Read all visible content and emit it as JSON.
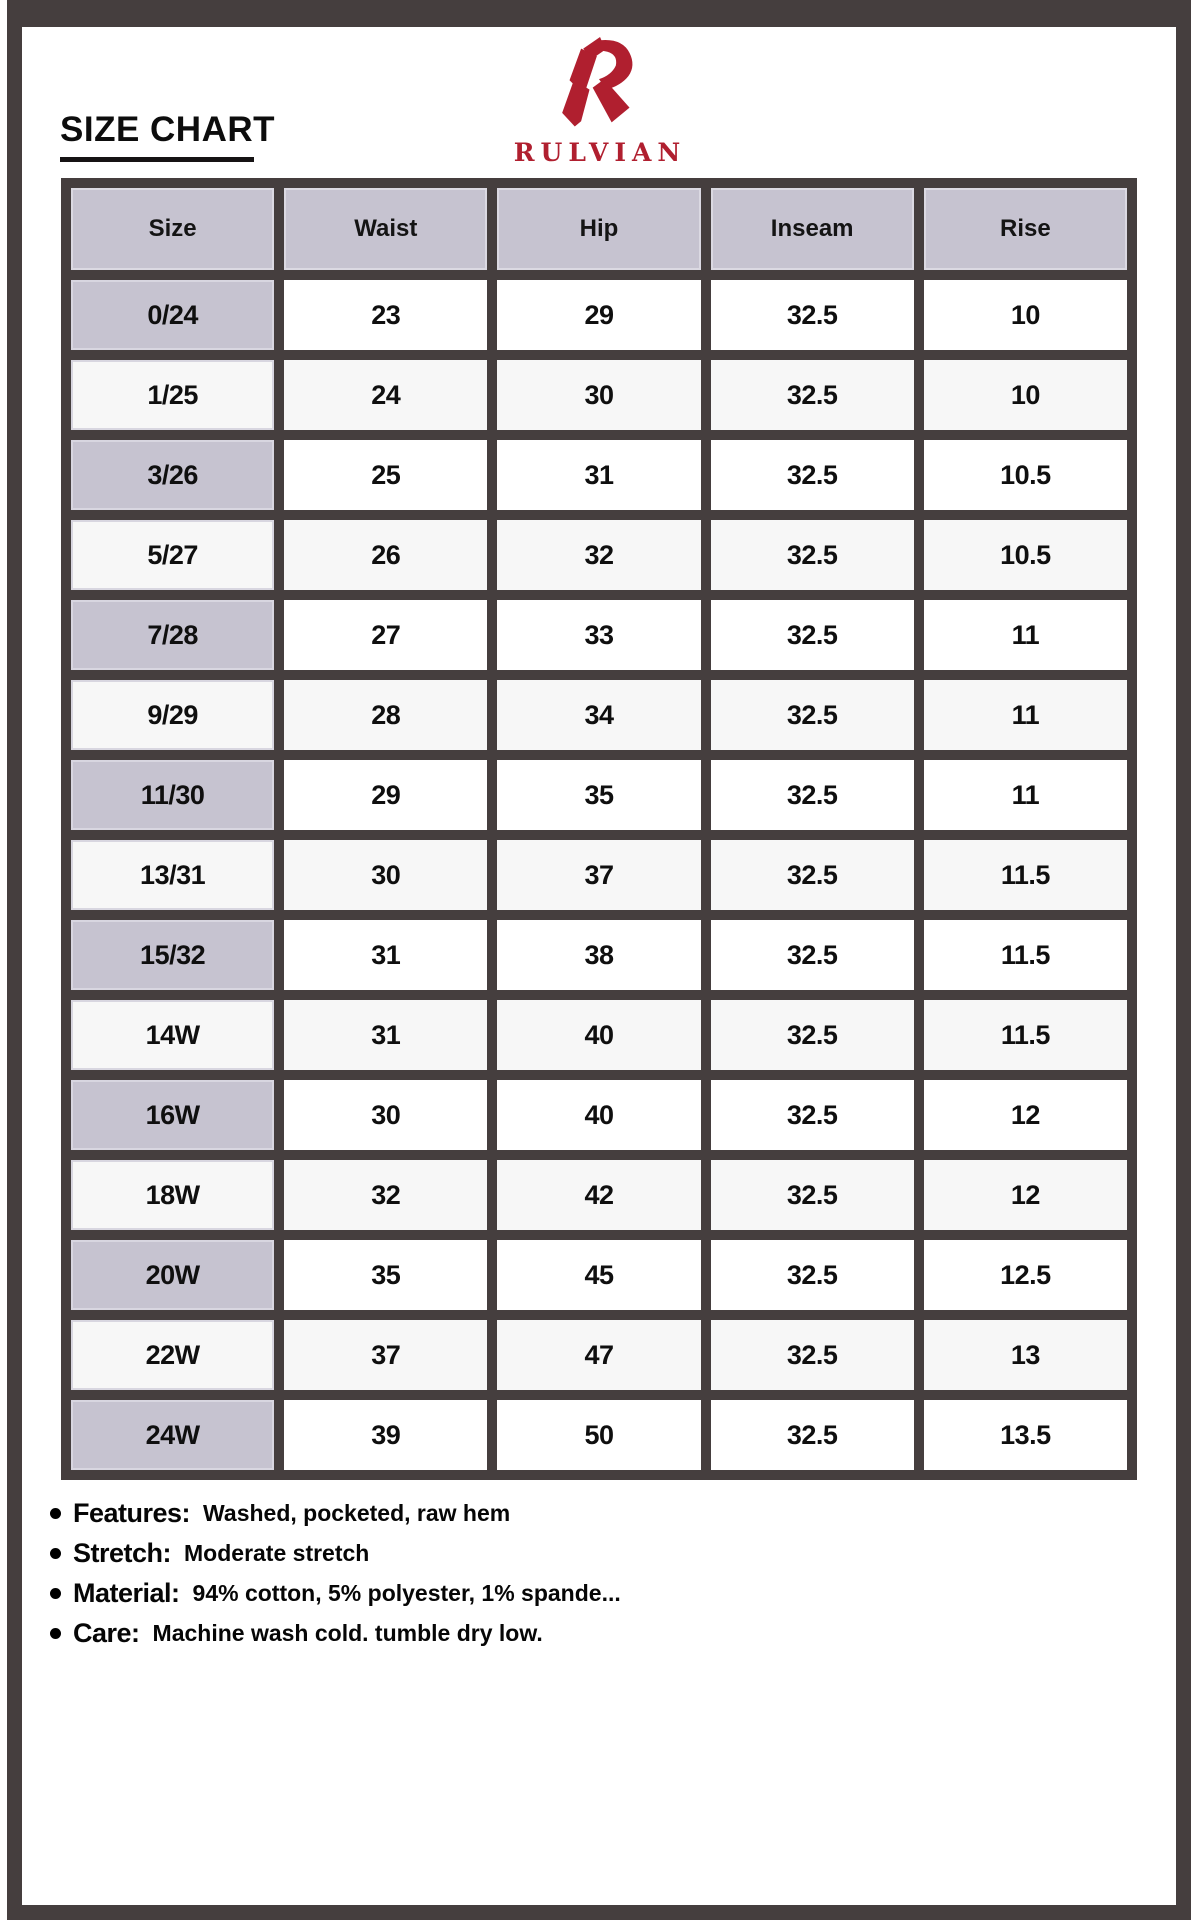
{
  "page": {
    "title": "SIZE CHART",
    "brand": "RULVIAN"
  },
  "colors": {
    "frame": "#453e3e",
    "header_cell": "#c6c3d0",
    "alt_row": "#f7f7f7",
    "brand_red": "#b01f2f"
  },
  "table": {
    "columns": [
      "Size",
      "Waist",
      "Hip",
      "Inseam",
      "Rise"
    ],
    "rows": [
      [
        "0/24",
        "23",
        "29",
        "32.5",
        "10"
      ],
      [
        "1/25",
        "24",
        "30",
        "32.5",
        "10"
      ],
      [
        "3/26",
        "25",
        "31",
        "32.5",
        "10.5"
      ],
      [
        "5/27",
        "26",
        "32",
        "32.5",
        "10.5"
      ],
      [
        "7/28",
        "27",
        "33",
        "32.5",
        "11"
      ],
      [
        "9/29",
        "28",
        "34",
        "32.5",
        "11"
      ],
      [
        "11/30",
        "29",
        "35",
        "32.5",
        "11"
      ],
      [
        "13/31",
        "30",
        "37",
        "32.5",
        "11.5"
      ],
      [
        "15/32",
        "31",
        "38",
        "32.5",
        "11.5"
      ],
      [
        "14W",
        "31",
        "40",
        "32.5",
        "11.5"
      ],
      [
        "16W",
        "30",
        "40",
        "32.5",
        "12"
      ],
      [
        "18W",
        "32",
        "42",
        "32.5",
        "12"
      ],
      [
        "20W",
        "35",
        "45",
        "32.5",
        "12.5"
      ],
      [
        "22W",
        "37",
        "47",
        "32.5",
        "13"
      ],
      [
        "24W",
        "39",
        "50",
        "32.5",
        "13.5"
      ]
    ]
  },
  "details": [
    {
      "label": "Features:",
      "value": "Washed, pocketed, raw hem"
    },
    {
      "label": "Stretch:",
      "value": "Moderate stretch"
    },
    {
      "label": "Material:",
      "value": "94% cotton, 5% polyester, 1% spande..."
    },
    {
      "label": "Care:",
      "value": "Machine wash cold. tumble dry low."
    }
  ]
}
